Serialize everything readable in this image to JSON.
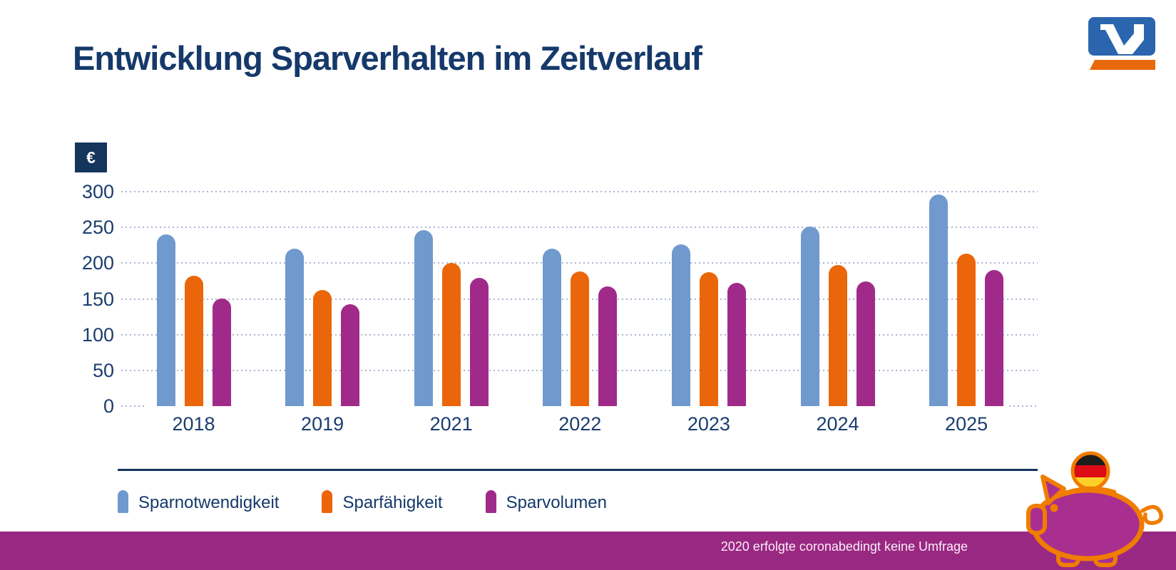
{
  "title": "Entwicklung Sparverhalten im Zeitverlauf",
  "axis": {
    "unit_label": "€"
  },
  "chart_data": {
    "type": "bar",
    "title": "Entwicklung Sparverhalten im Zeitverlauf",
    "categories": [
      "2018",
      "2019",
      "2021",
      "2022",
      "2023",
      "2024",
      "2025"
    ],
    "series": [
      {
        "name": "Sparnotwendigkeit",
        "color": "#7099ce",
        "values": [
          240,
          220,
          246,
          220,
          226,
          251,
          296
        ]
      },
      {
        "name": "Sparfähigkeit",
        "color": "#eb660a",
        "values": [
          182,
          162,
          200,
          188,
          187,
          197,
          213
        ]
      },
      {
        "name": "Sparvolumen",
        "color": "#a02a8a",
        "values": [
          150,
          143,
          179,
          167,
          172,
          174,
          190
        ]
      }
    ],
    "ylabel": "€",
    "ylim": [
      0,
      300
    ],
    "ytick_step": 50,
    "grid": "horizontal-dotted",
    "legend_position": "bottom-left"
  },
  "footer": {
    "note": "2020 erfolgte coronabedingt keine Umfrage",
    "bar_color": "#992882"
  },
  "logo": {
    "name": "Volksbank V",
    "blue": "#2a65ae",
    "orange": "#e8690b"
  },
  "illustration": {
    "name": "piggy bank with german flag coin",
    "pig_body": "#a82f90",
    "pig_outline": "#f07c00",
    "flag_black": "#1d1d1b",
    "flag_red": "#dd0b15",
    "flag_gold": "#ffd02a"
  }
}
